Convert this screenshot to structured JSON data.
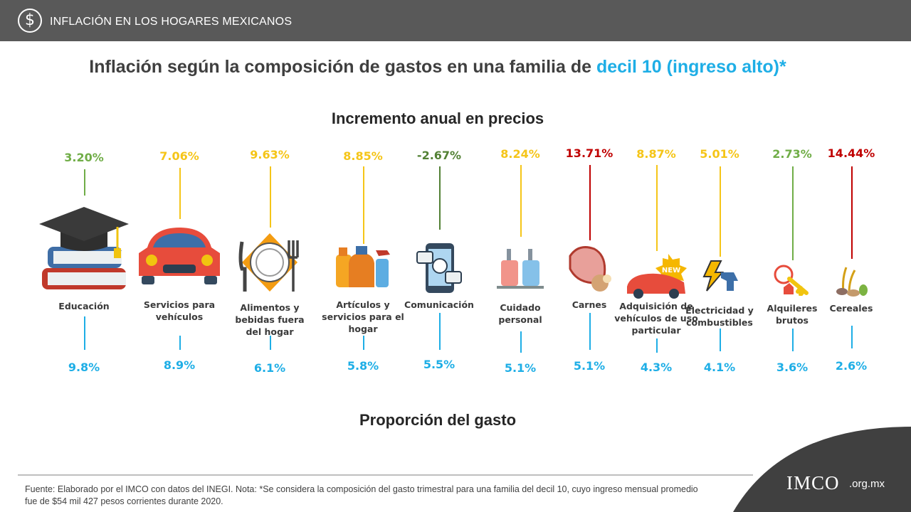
{
  "header": {
    "section_title": "INFLACIÓN  EN LOS HOGARES MEXICANOS",
    "icon": "dollar-icon"
  },
  "title": {
    "prefix": "Inflación según la composición de gastos en una familia de",
    "highlight": "decil 10 (ingreso alto)*"
  },
  "colors": {
    "accent": "#1eaee6",
    "green": "#70ad47",
    "green_dark": "#538135",
    "yellow": "#f5c518",
    "red": "#c00000",
    "bar": "#595959"
  },
  "chart_data": {
    "type": "table",
    "title": "Incremento anual en precios",
    "bottom_title": "Proporción del gasto",
    "categories": [
      {
        "label": "Educación",
        "inflation": 3.2,
        "inflation_label": "3.20%",
        "share": 9.8,
        "share_label": "9.8%",
        "color": "#70ad47",
        "icon": "books-graduation-cap-icon"
      },
      {
        "label": "Servicios para vehículos",
        "inflation": 7.06,
        "inflation_label": "7.06%",
        "share": 8.9,
        "share_label": "8.9%",
        "color": "#f5c518",
        "icon": "car-icon"
      },
      {
        "label": "Alimentos y bebidas fuera del hogar",
        "inflation": 9.63,
        "inflation_label": "9.63%",
        "share": 6.1,
        "share_label": "6.1%",
        "color": "#f5c518",
        "icon": "plate-cutlery-icon"
      },
      {
        "label": "Artículos y servicios para el hogar",
        "inflation": 8.85,
        "inflation_label": "8.85%",
        "share": 5.8,
        "share_label": "5.8%",
        "color": "#f5c518",
        "icon": "cleaning-products-icon"
      },
      {
        "label": "Comunicación",
        "inflation": -2.67,
        "inflation_label": "-2.67%",
        "share": 5.5,
        "share_label": "5.5%",
        "color": "#538135",
        "icon": "smartphone-icon"
      },
      {
        "label": "Cuidado personal",
        "inflation": 8.24,
        "inflation_label": "8.24%",
        "share": 5.1,
        "share_label": "5.1%",
        "color": "#f5c518",
        "icon": "soap-bottles-icon"
      },
      {
        "label": "Carnes",
        "inflation": 13.71,
        "inflation_label": "13.71%",
        "share": 5.1,
        "share_label": "5.1%",
        "color": "#c00000",
        "icon": "ham-icon"
      },
      {
        "label": "Adquisición de vehículos de uso particular",
        "inflation": 8.87,
        "inflation_label": "8.87%",
        "share": 4.3,
        "share_label": "4.3%",
        "color": "#f5c518",
        "icon": "new-car-icon",
        "badge": "NEW"
      },
      {
        "label": "Electricidad y combustibles",
        "inflation": 5.01,
        "inflation_label": "5.01%",
        "share": 4.1,
        "share_label": "4.1%",
        "color": "#f5c518",
        "icon": "bolt-fuel-nozzle-icon"
      },
      {
        "label": "Alquileres brutos",
        "inflation": 2.73,
        "inflation_label": "2.73%",
        "share": 3.6,
        "share_label": "3.6%",
        "color": "#70ad47",
        "icon": "house-key-icon"
      },
      {
        "label": "Cereales",
        "inflation": 14.44,
        "inflation_label": "14.44%",
        "share": 2.6,
        "share_label": "2.6%",
        "color": "#c00000",
        "icon": "grains-icon"
      }
    ]
  },
  "footnote": "Fuente: Elaborado por el IMCO con datos del INEGI. Nota: *Se considera la composición del gasto trimestral para una familia del decil 10, cuyo ingreso mensual promedio fue de $54 mil 427 pesos corrientes durante 2020.",
  "brand": {
    "logo": "IMCO",
    "domain": ".org.mx"
  }
}
